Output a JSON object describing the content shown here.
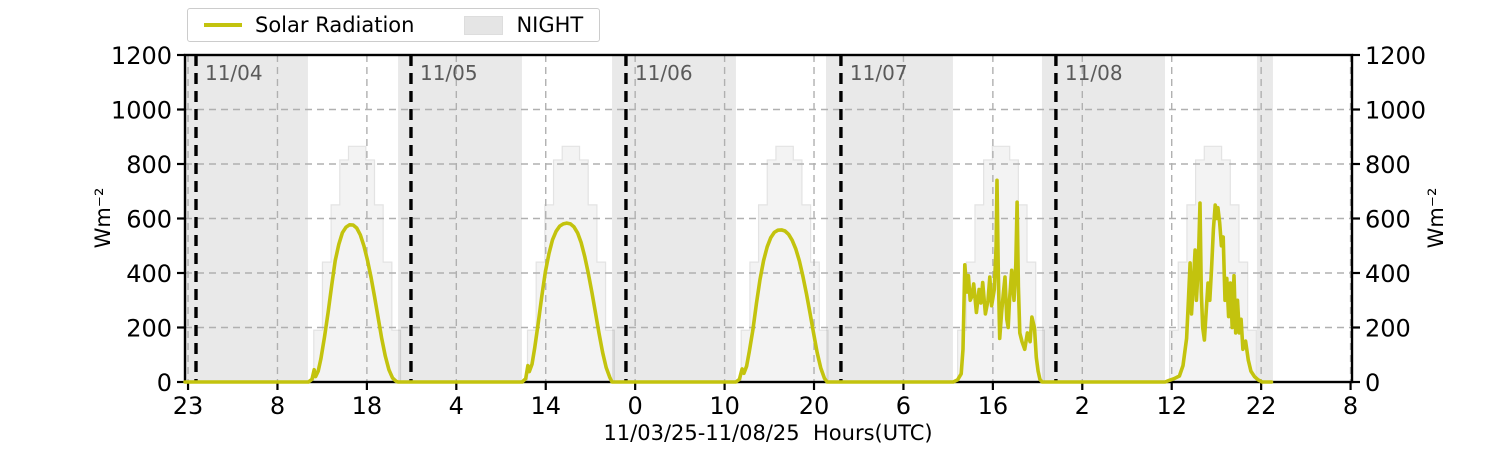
{
  "colors": {
    "solar_line": "#c3c30e",
    "night_fill": "rgba(0,0,0,0.085)",
    "clear_sky_fill": "#f3f3f3",
    "clear_sky_edge": "#e3e3e3",
    "grid": "#b0b0b0",
    "day_line": "#000000",
    "date_label": "#5a5a5a",
    "tick_label": "#000000",
    "legend_night_patch": "#e5e5e5"
  },
  "legend": {
    "solar_label": "Solar Radiation",
    "night_label": "NIGHT"
  },
  "chart_data": {
    "type": "line",
    "title": "",
    "xlabel": "11/03/25-11/08/25  Hours(UTC)",
    "ylabel_left": "Wm⁻²",
    "ylabel_right": "Wm⁻²",
    "ylim": [
      0,
      1200
    ],
    "yticks": [
      0,
      200,
      400,
      600,
      800,
      1000,
      1200
    ],
    "grid": true,
    "x_total_hours": 130.5,
    "xticks": {
      "hours": [
        0.34,
        10.34,
        20.34,
        30.34,
        40.34,
        50.34,
        60.34,
        70.34,
        80.34,
        90.34,
        100.34,
        110.34,
        120.34,
        130.34
      ],
      "labels": [
        "23",
        "8",
        "18",
        "4",
        "14",
        "0",
        "10",
        "20",
        "6",
        "16",
        "2",
        "12",
        "22",
        "8"
      ]
    },
    "day_boundaries": [
      {
        "hour": 1.23,
        "label": "11/04"
      },
      {
        "hour": 25.27,
        "label": "11/05"
      },
      {
        "hour": 49.31,
        "label": "11/06"
      },
      {
        "hour": 73.35,
        "label": "11/07"
      },
      {
        "hour": 97.39,
        "label": "11/08"
      }
    ],
    "night_bands": [
      [
        0,
        13.75
      ],
      [
        23.82,
        37.68
      ],
      [
        47.75,
        61.61
      ],
      [
        71.68,
        85.88
      ],
      [
        95.83,
        109.59
      ],
      [
        119.87,
        121.66
      ]
    ],
    "clear_sky_steps": {
      "day_start_hours": [
        14.4,
        38.3,
        62.2,
        86.4,
        110.1
      ],
      "bin_width_hours": 0.97,
      "bin_values": [
        190,
        440,
        650,
        815,
        865,
        865,
        815,
        650,
        440,
        190
      ]
    },
    "series": [
      {
        "name": "Solar Radiation",
        "points": [
          [
            0,
            0
          ],
          [
            13.8,
            0
          ],
          [
            14.2,
            10
          ],
          [
            14.45,
            45
          ],
          [
            14.6,
            20
          ],
          [
            14.9,
            40
          ],
          [
            15.2,
            85
          ],
          [
            15.6,
            165
          ],
          [
            16.0,
            255
          ],
          [
            16.4,
            355
          ],
          [
            16.8,
            445
          ],
          [
            17.2,
            505
          ],
          [
            17.6,
            548
          ],
          [
            18.0,
            568
          ],
          [
            18.4,
            577
          ],
          [
            18.8,
            576
          ],
          [
            19.2,
            565
          ],
          [
            19.6,
            540
          ],
          [
            20.0,
            500
          ],
          [
            20.4,
            448
          ],
          [
            20.8,
            385
          ],
          [
            21.2,
            312
          ],
          [
            21.6,
            235
          ],
          [
            22.0,
            160
          ],
          [
            22.4,
            95
          ],
          [
            22.8,
            45
          ],
          [
            23.2,
            15
          ],
          [
            23.6,
            3
          ],
          [
            23.82,
            0
          ],
          [
            37.7,
            0
          ],
          [
            38.1,
            12
          ],
          [
            38.35,
            60
          ],
          [
            38.5,
            38
          ],
          [
            38.8,
            65
          ],
          [
            39.1,
            125
          ],
          [
            39.5,
            215
          ],
          [
            39.9,
            315
          ],
          [
            40.3,
            405
          ],
          [
            40.7,
            472
          ],
          [
            41.1,
            522
          ],
          [
            41.5,
            553
          ],
          [
            41.9,
            572
          ],
          [
            42.3,
            580
          ],
          [
            42.7,
            583
          ],
          [
            43.1,
            580
          ],
          [
            43.5,
            569
          ],
          [
            43.9,
            547
          ],
          [
            44.3,
            511
          ],
          [
            44.7,
            461
          ],
          [
            45.1,
            399
          ],
          [
            45.5,
            329
          ],
          [
            45.9,
            254
          ],
          [
            46.3,
            179
          ],
          [
            46.7,
            109
          ],
          [
            47.1,
            53
          ],
          [
            47.5,
            17
          ],
          [
            47.75,
            0
          ],
          [
            61.6,
            0
          ],
          [
            62.0,
            10
          ],
          [
            62.3,
            48
          ],
          [
            62.5,
            32
          ],
          [
            62.8,
            58
          ],
          [
            63.1,
            112
          ],
          [
            63.5,
            192
          ],
          [
            63.9,
            287
          ],
          [
            64.3,
            376
          ],
          [
            64.7,
            446
          ],
          [
            65.1,
            496
          ],
          [
            65.5,
            529
          ],
          [
            65.9,
            549
          ],
          [
            66.3,
            557
          ],
          [
            66.7,
            558
          ],
          [
            67.1,
            554
          ],
          [
            67.5,
            542
          ],
          [
            67.9,
            520
          ],
          [
            68.3,
            488
          ],
          [
            68.7,
            444
          ],
          [
            69.1,
            388
          ],
          [
            69.5,
            323
          ],
          [
            69.9,
            251
          ],
          [
            70.3,
            177
          ],
          [
            70.7,
            107
          ],
          [
            71.1,
            51
          ],
          [
            71.5,
            14
          ],
          [
            71.8,
            0
          ],
          [
            85.9,
            0
          ],
          [
            86.4,
            8
          ],
          [
            86.8,
            30
          ],
          [
            87.0,
            120
          ],
          [
            87.2,
            430
          ],
          [
            87.45,
            330
          ],
          [
            87.6,
            390
          ],
          [
            87.8,
            300
          ],
          [
            88.0,
            315
          ],
          [
            88.2,
            360
          ],
          [
            88.5,
            255
          ],
          [
            88.8,
            340
          ],
          [
            89.0,
            290
          ],
          [
            89.2,
            365
          ],
          [
            89.5,
            250
          ],
          [
            89.8,
            300
          ],
          [
            90.0,
            385
          ],
          [
            90.2,
            280
          ],
          [
            90.5,
            340
          ],
          [
            90.7,
            500
          ],
          [
            90.8,
            740
          ],
          [
            90.95,
            400
          ],
          [
            91.1,
            160
          ],
          [
            91.3,
            250
          ],
          [
            91.5,
            320
          ],
          [
            91.7,
            385
          ],
          [
            91.9,
            230
          ],
          [
            92.05,
            200
          ],
          [
            92.2,
            300
          ],
          [
            92.45,
            410
          ],
          [
            92.7,
            300
          ],
          [
            92.9,
            430
          ],
          [
            93.05,
            660
          ],
          [
            93.2,
            350
          ],
          [
            93.35,
            180
          ],
          [
            93.6,
            148
          ],
          [
            93.9,
            120
          ],
          [
            94.2,
            180
          ],
          [
            94.5,
            148
          ],
          [
            94.7,
            238
          ],
          [
            95.0,
            198
          ],
          [
            95.2,
            90
          ],
          [
            95.4,
            40
          ],
          [
            95.6,
            10
          ],
          [
            95.85,
            0
          ],
          [
            109.6,
            0
          ],
          [
            110.0,
            5
          ],
          [
            110.6,
            12
          ],
          [
            111.2,
            22
          ],
          [
            111.6,
            60
          ],
          [
            112.0,
            160
          ],
          [
            112.2,
            300
          ],
          [
            112.4,
            437
          ],
          [
            112.55,
            250
          ],
          [
            112.75,
            360
          ],
          [
            112.95,
            484
          ],
          [
            113.1,
            300
          ],
          [
            113.3,
            420
          ],
          [
            113.5,
            657
          ],
          [
            113.65,
            330
          ],
          [
            113.8,
            200
          ],
          [
            114.0,
            154
          ],
          [
            114.2,
            260
          ],
          [
            114.4,
            363
          ],
          [
            114.6,
            300
          ],
          [
            114.8,
            420
          ],
          [
            115.0,
            560
          ],
          [
            115.2,
            649
          ],
          [
            115.35,
            600
          ],
          [
            115.5,
            640
          ],
          [
            115.7,
            583
          ],
          [
            115.9,
            500
          ],
          [
            116.1,
            532
          ],
          [
            116.3,
            300
          ],
          [
            116.5,
            380
          ],
          [
            116.7,
            240
          ],
          [
            116.9,
            363
          ],
          [
            117.1,
            200
          ],
          [
            117.3,
            390
          ],
          [
            117.5,
            180
          ],
          [
            117.7,
            300
          ],
          [
            117.9,
            180
          ],
          [
            118.1,
            230
          ],
          [
            118.3,
            120
          ],
          [
            118.6,
            150
          ],
          [
            118.9,
            80
          ],
          [
            119.2,
            40
          ],
          [
            119.6,
            20
          ],
          [
            120.0,
            8
          ],
          [
            120.45,
            0
          ],
          [
            121.5,
            0
          ]
        ]
      }
    ]
  }
}
